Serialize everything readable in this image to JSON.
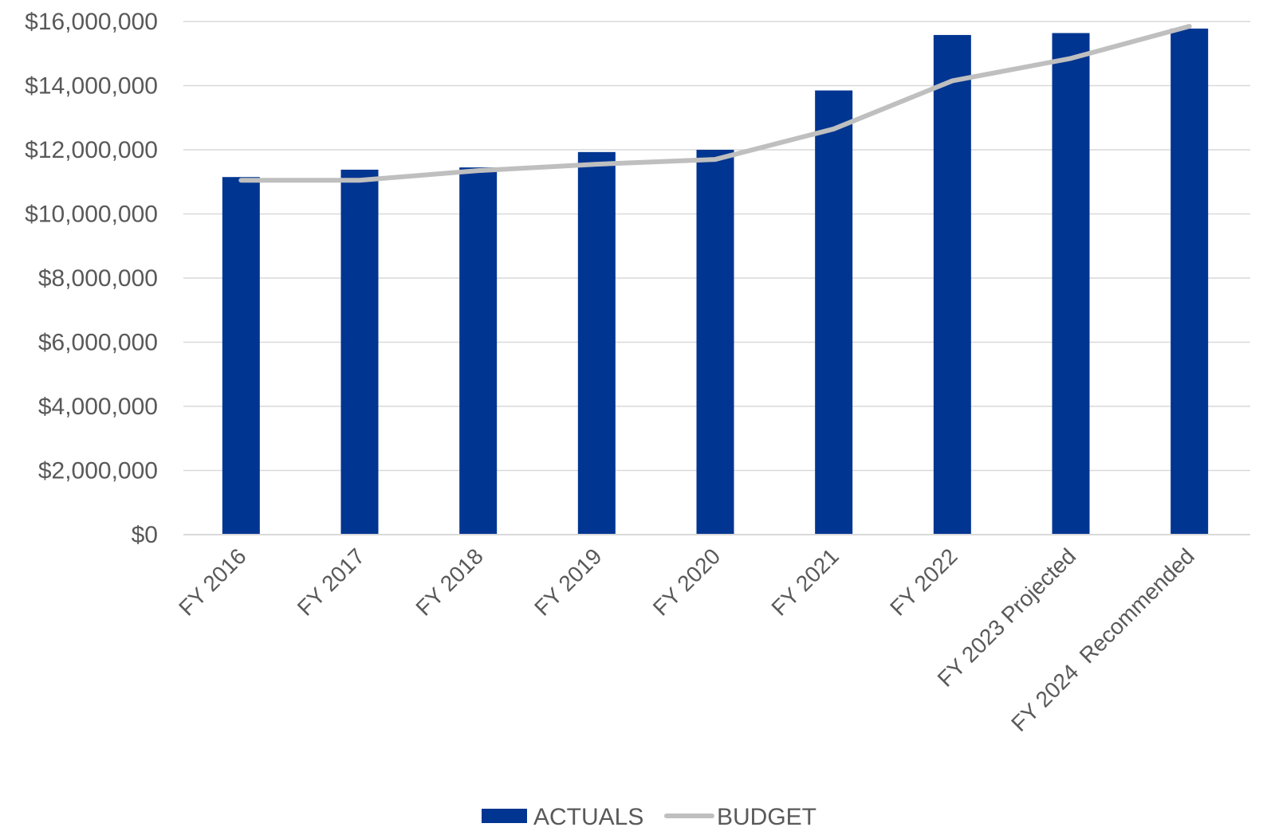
{
  "chart_data": {
    "type": "bar",
    "title": "",
    "xlabel": "",
    "ylabel": "",
    "categories": [
      "FY 2016",
      "FY 2017",
      "FY 2018",
      "FY 2019",
      "FY 2020",
      "FY 2021",
      "FY 2022",
      "FY 2023 Projected",
      "FY 2024  Recommended"
    ],
    "series": [
      {
        "name": "ACTUALS",
        "type": "bar",
        "color": "#003591",
        "values": [
          11150000,
          11380000,
          11450000,
          11930000,
          12000000,
          13850000,
          15580000,
          15640000,
          15780000
        ]
      },
      {
        "name": "BUDGET",
        "type": "line",
        "color": "#bfbfbf",
        "values": [
          11050000,
          11050000,
          11350000,
          11550000,
          11700000,
          12650000,
          14150000,
          14850000,
          15850000
        ]
      }
    ],
    "ylim": [
      0,
      16000000
    ],
    "yticks": [
      "$0",
      "$2,000,000",
      "$4,000,000",
      "$6,000,000",
      "$8,000,000",
      "$10,000,000",
      "$12,000,000",
      "$14,000,000",
      "$16,000,000"
    ],
    "grid": true,
    "legend": "bottom-center",
    "colors": {
      "bar": "#003591",
      "line": "#bfbfbf",
      "grid": "#d9d9d9",
      "axis_text": "#595959"
    }
  }
}
